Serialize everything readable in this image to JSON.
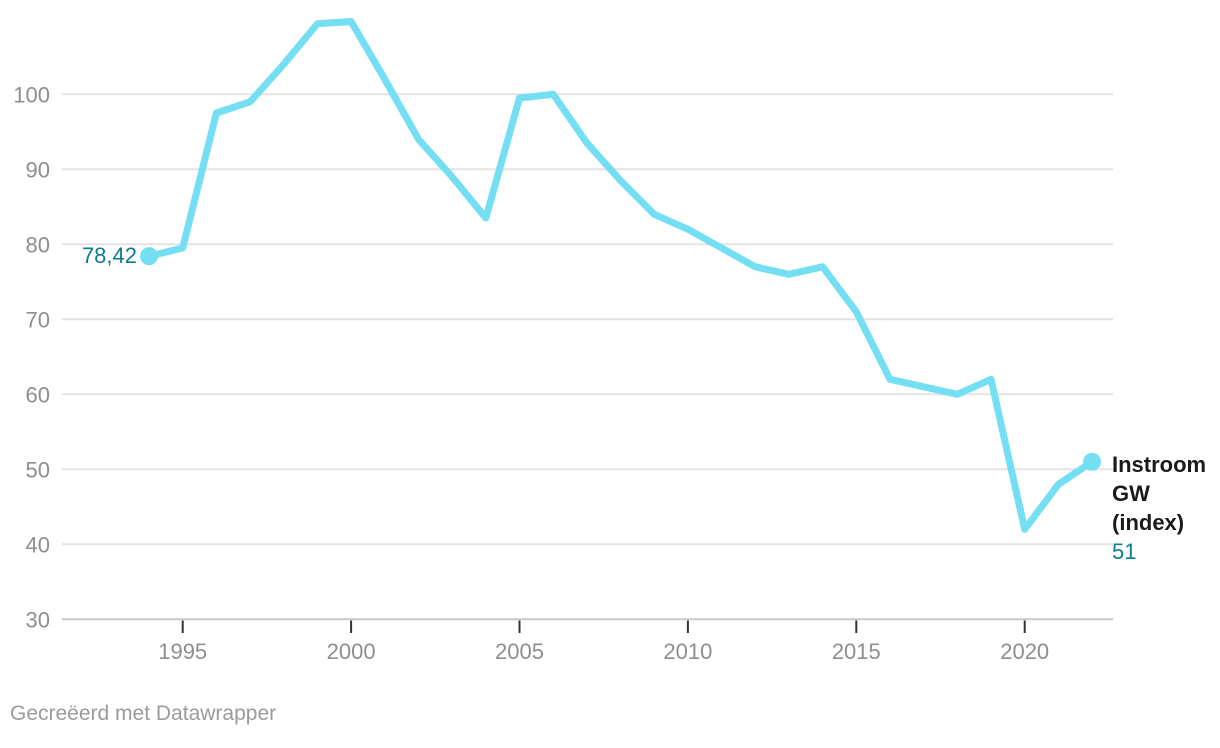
{
  "chart_data": {
    "type": "line",
    "title": "",
    "xlabel": "",
    "ylabel": "",
    "grid": "horizontal",
    "legend_position": "end-of-line-label",
    "years": [
      1994,
      1995,
      1996,
      1997,
      1998,
      1999,
      2000,
      2001,
      2002,
      2003,
      2004,
      2005,
      2006,
      2007,
      2008,
      2009,
      2010,
      2011,
      2012,
      2013,
      2014,
      2015,
      2016,
      2017,
      2018,
      2019,
      2020,
      2021,
      2022
    ],
    "series": [
      {
        "name": "Instroom GW (index)",
        "values": [
          78.42,
          79.5,
          97.5,
          99,
          104,
          109.4,
          109.7,
          102,
          94,
          89,
          83.5,
          99.5,
          100,
          93.5,
          88.5,
          84,
          82,
          79.5,
          77,
          76,
          77,
          71,
          62,
          61,
          60,
          62,
          42,
          48,
          51
        ]
      }
    ],
    "x_ticks": [
      1995,
      2000,
      2005,
      2010,
      2015,
      2020
    ],
    "y_ticks": [
      30,
      40,
      50,
      60,
      70,
      80,
      90,
      100
    ],
    "xlim": [
      1994,
      2022
    ],
    "ylim": [
      30,
      112
    ],
    "first_point_label": "78,42",
    "last_point_label": "51",
    "series_label": "Instroom GW (index)"
  },
  "footer": {
    "credit": "Gecreëerd met Datawrapper"
  },
  "colors": {
    "background": "#ffffff",
    "line": "#74dff3",
    "point_marker": "#74dff3",
    "value_label": "#0b7c91",
    "series_label_text": "#1a1a1a",
    "grid": "#e4e4e4",
    "axis_baseline": "#c8c8c8",
    "tick_mark": "#333333",
    "tick_label": "#8e8e8e",
    "footer_text": "#9b9b9b"
  }
}
